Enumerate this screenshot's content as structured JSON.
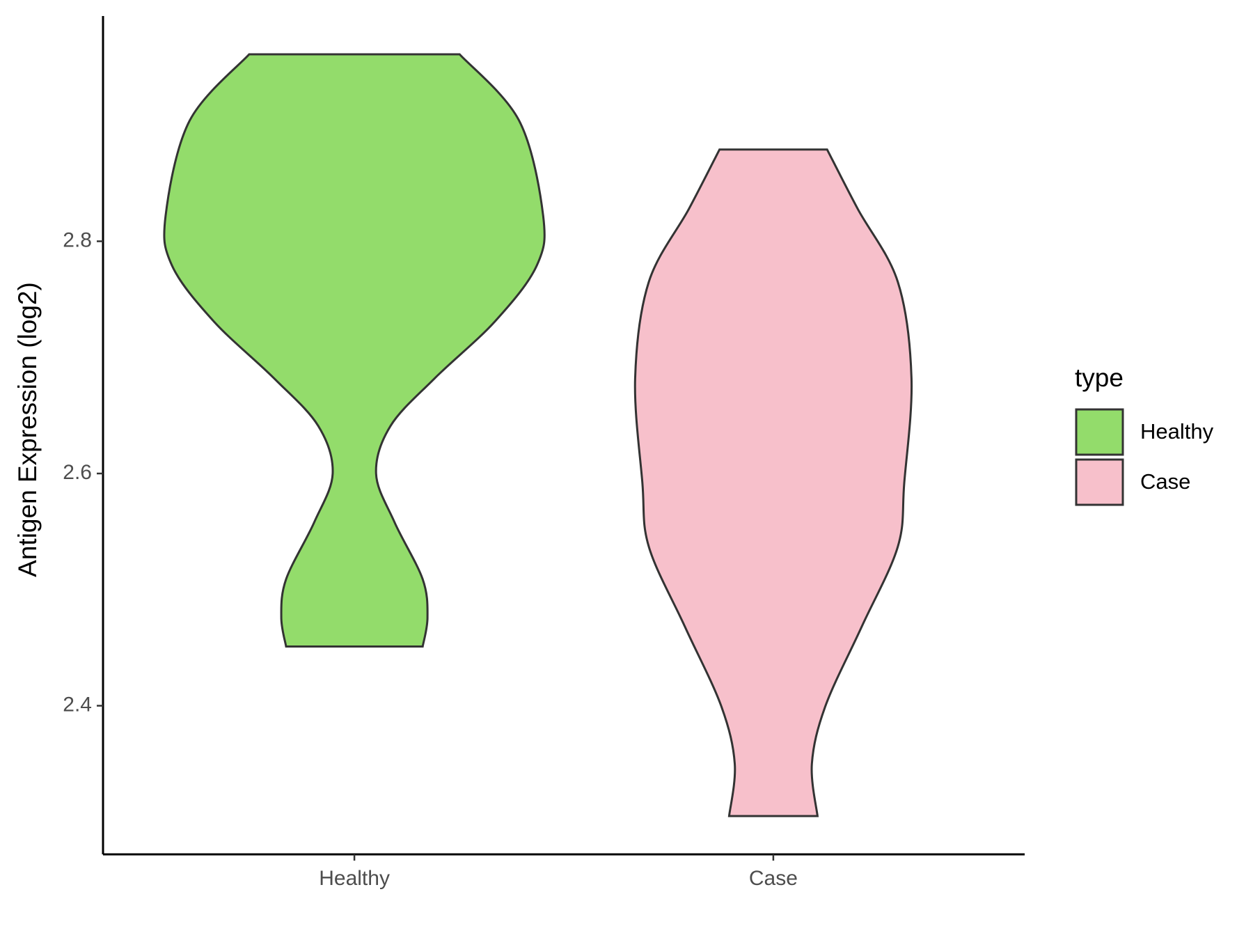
{
  "chart_data": {
    "type": "violin",
    "y_label": "Antigen Expression (log2)",
    "categories": [
      "Healthy",
      "Case"
    ],
    "ylim": [
      2.272,
      2.994
    ],
    "yticks": [
      2.4,
      2.6,
      2.8
    ],
    "legend_title": "type",
    "legend_position": "right",
    "series": [
      {
        "name": "Healthy",
        "color": "#93dc6b",
        "y": [
          2.961,
          2.904,
          2.822,
          2.779,
          2.731,
          2.682,
          2.641,
          2.6,
          2.558,
          2.509,
          2.476,
          2.451
        ],
        "density": [
          131,
          205,
          235,
          227,
          175,
          100,
          45,
          27,
          50,
          85,
          91,
          85
        ]
      },
      {
        "name": "Case",
        "color": "#f7c0cb",
        "y": [
          2.879,
          2.828,
          2.765,
          2.682,
          2.592,
          2.537,
          2.468,
          2.4,
          2.35,
          2.305
        ],
        "density": [
          67,
          105,
          155,
          172,
          163,
          155,
          110,
          65,
          48,
          55
        ]
      }
    ]
  }
}
